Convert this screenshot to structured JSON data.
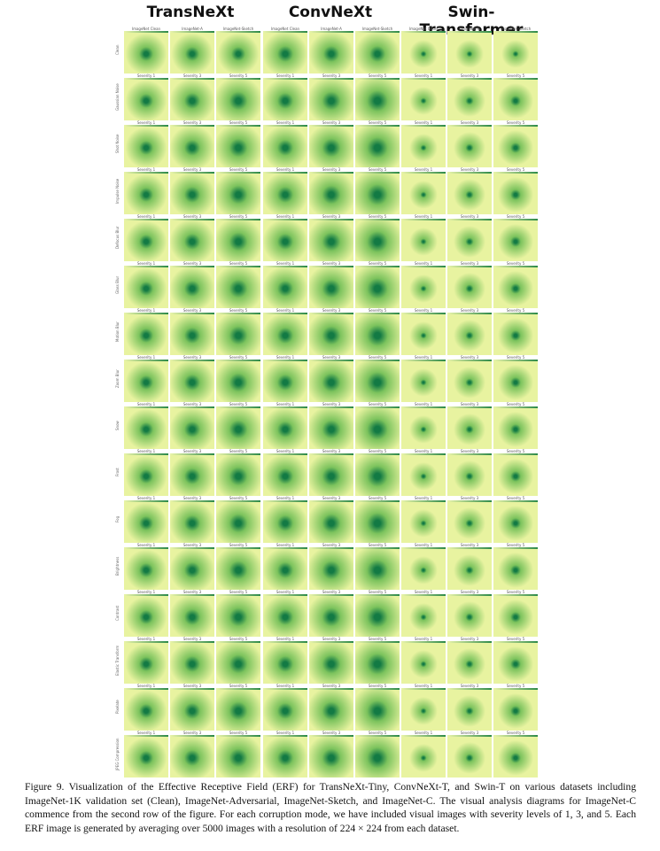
{
  "headers": [
    "TransNeXt",
    "ConvNeXt",
    "Swin-Transformer"
  ],
  "rows": [
    {
      "label": "Clean",
      "titles": [
        "ImageNet Clean",
        "ImageNet-A",
        "ImageNet-Sketch",
        "ImageNet Clean",
        "ImageNet-A",
        "ImageNet-Sketch",
        "ImageNet Clean",
        "ImageNet-A",
        "ImageNet-Sketch"
      ]
    },
    {
      "label": "Gaussian Noise",
      "titles": [
        "Severity 1",
        "Severity 3",
        "Severity 5",
        "Severity 1",
        "Severity 3",
        "Severity 5",
        "Severity 1",
        "Severity 3",
        "Severity 5"
      ]
    },
    {
      "label": "Shot Noise",
      "titles": [
        "Severity 1",
        "Severity 3",
        "Severity 5",
        "Severity 1",
        "Severity 3",
        "Severity 5",
        "Severity 1",
        "Severity 3",
        "Severity 5"
      ]
    },
    {
      "label": "Impulse Noise",
      "titles": [
        "Severity 1",
        "Severity 3",
        "Severity 5",
        "Severity 1",
        "Severity 3",
        "Severity 5",
        "Severity 1",
        "Severity 3",
        "Severity 5"
      ]
    },
    {
      "label": "Defocus Blur",
      "titles": [
        "Severity 1",
        "Severity 3",
        "Severity 5",
        "Severity 1",
        "Severity 3",
        "Severity 5",
        "Severity 1",
        "Severity 3",
        "Severity 5"
      ]
    },
    {
      "label": "Glass Blur",
      "titles": [
        "Severity 1",
        "Severity 3",
        "Severity 5",
        "Severity 1",
        "Severity 3",
        "Severity 5",
        "Severity 1",
        "Severity 3",
        "Severity 5"
      ]
    },
    {
      "label": "Motion Blur",
      "titles": [
        "Severity 1",
        "Severity 3",
        "Severity 5",
        "Severity 1",
        "Severity 3",
        "Severity 5",
        "Severity 1",
        "Severity 3",
        "Severity 5"
      ]
    },
    {
      "label": "Zoom Blur",
      "titles": [
        "Severity 1",
        "Severity 3",
        "Severity 5",
        "Severity 1",
        "Severity 3",
        "Severity 5",
        "Severity 1",
        "Severity 3",
        "Severity 5"
      ]
    },
    {
      "label": "Snow",
      "titles": [
        "Severity 1",
        "Severity 3",
        "Severity 5",
        "Severity 1",
        "Severity 3",
        "Severity 5",
        "Severity 1",
        "Severity 3",
        "Severity 5"
      ]
    },
    {
      "label": "Frost",
      "titles": [
        "Severity 1",
        "Severity 3",
        "Severity 5",
        "Severity 1",
        "Severity 3",
        "Severity 5",
        "Severity 1",
        "Severity 3",
        "Severity 5"
      ]
    },
    {
      "label": "Fog",
      "titles": [
        "Severity 1",
        "Severity 3",
        "Severity 5",
        "Severity 1",
        "Severity 3",
        "Severity 5",
        "Severity 1",
        "Severity 3",
        "Severity 5"
      ]
    },
    {
      "label": "Brightness",
      "titles": [
        "Severity 1",
        "Severity 3",
        "Severity 5",
        "Severity 1",
        "Severity 3",
        "Severity 5",
        "Severity 1",
        "Severity 3",
        "Severity 5"
      ]
    },
    {
      "label": "Contrast",
      "titles": [
        "Severity 1",
        "Severity 3",
        "Severity 5",
        "Severity 1",
        "Severity 3",
        "Severity 5",
        "Severity 1",
        "Severity 3",
        "Severity 5"
      ]
    },
    {
      "label": "Elastic Transform",
      "titles": [
        "Severity 1",
        "Severity 3",
        "Severity 5",
        "Severity 1",
        "Severity 3",
        "Severity 5",
        "Severity 1",
        "Severity 3",
        "Severity 5"
      ]
    },
    {
      "label": "Pixelate",
      "titles": [
        "Severity 1",
        "Severity 3",
        "Severity 5",
        "Severity 1",
        "Severity 3",
        "Severity 5",
        "Severity 1",
        "Severity 3",
        "Severity 5"
      ]
    },
    {
      "label": "JPEG Compression",
      "titles": [
        "Severity 1",
        "Severity 3",
        "Severity 5",
        "Severity 1",
        "Severity 3",
        "Severity 5",
        "Severity 1",
        "Severity 3",
        "Severity 5"
      ]
    }
  ],
  "caption": "Figure 9. Visualization of the Effective Receptive Field (ERF) for TransNeXt-Tiny, ConvNeXt-T, and Swin-T on various datasets including ImageNet-1K validation set (Clean), ImageNet-Adversarial, ImageNet-Sketch, and ImageNet-C. The visual analysis diagrams for ImageNet-C commence from the second row of the figure. For each corruption mode, we have included visual images with severity levels of 1, 3, and 5. Each ERF image is generated by averaging over 5000 images with a resolution of 224 × 224 from each dataset.",
  "colors": {
    "light": "#e8f3a0",
    "mid": "#7cc35d",
    "dark": "#137a44"
  }
}
